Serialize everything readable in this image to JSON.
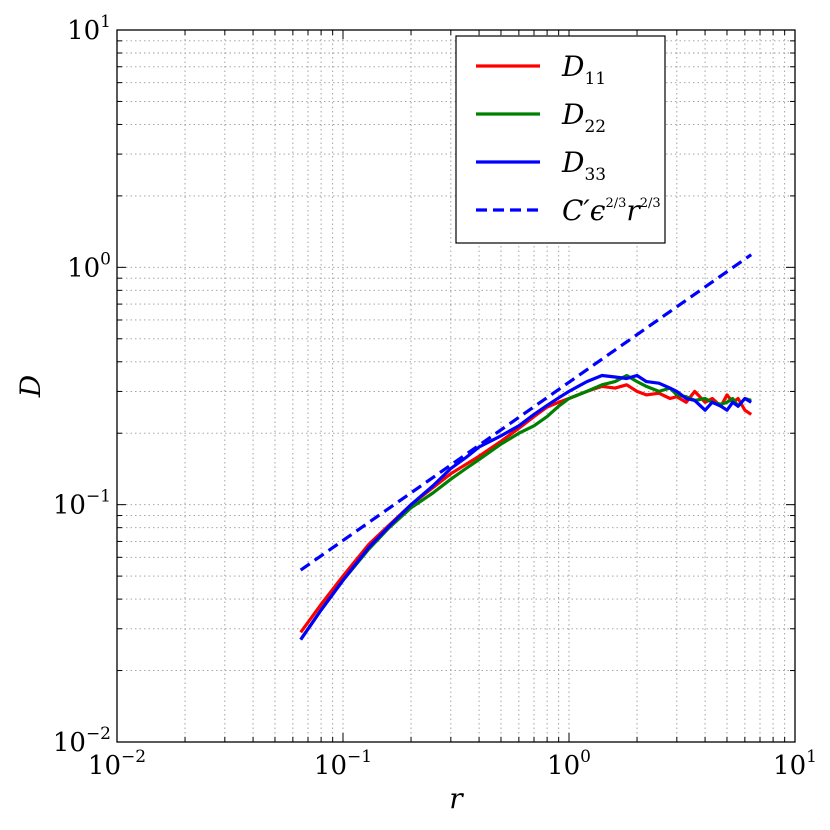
{
  "chart_data": {
    "type": "line",
    "xscale": "log",
    "yscale": "log",
    "xlim": [
      0.01,
      10
    ],
    "ylim": [
      0.01,
      10
    ],
    "xlabel": "r",
    "ylabel": "D",
    "grid": true,
    "legend_position": "top-right",
    "x_ticks": [
      {
        "value": 0.01,
        "base": "10",
        "exp": "−2"
      },
      {
        "value": 0.1,
        "base": "10",
        "exp": "−1"
      },
      {
        "value": 1,
        "base": "10",
        "exp": "0"
      },
      {
        "value": 10,
        "base": "10",
        "exp": "1"
      }
    ],
    "y_ticks": [
      {
        "value": 0.01,
        "base": "10",
        "exp": "−2"
      },
      {
        "value": 0.1,
        "base": "10",
        "exp": "−1"
      },
      {
        "value": 1,
        "base": "10",
        "exp": "0"
      },
      {
        "value": 10,
        "base": "10",
        "exp": "1"
      }
    ],
    "series": [
      {
        "name": "D11",
        "label_main": "D",
        "label_sub": "11",
        "color": "#ff0000",
        "style": "solid",
        "x": [
          0.065,
          0.08,
          0.1,
          0.13,
          0.16,
          0.2,
          0.25,
          0.3,
          0.35,
          0.4,
          0.5,
          0.6,
          0.7,
          0.8,
          0.9,
          1.0,
          1.2,
          1.4,
          1.6,
          1.8,
          2.0,
          2.2,
          2.5,
          2.8,
          3.0,
          3.3,
          3.6,
          4.0,
          4.3,
          4.7,
          5.0,
          5.3,
          5.6,
          6.0,
          6.4
        ],
        "y": [
          0.029,
          0.038,
          0.05,
          0.068,
          0.082,
          0.1,
          0.118,
          0.135,
          0.148,
          0.16,
          0.185,
          0.21,
          0.235,
          0.258,
          0.27,
          0.28,
          0.3,
          0.315,
          0.31,
          0.32,
          0.3,
          0.29,
          0.295,
          0.28,
          0.285,
          0.27,
          0.3,
          0.27,
          0.28,
          0.26,
          0.29,
          0.27,
          0.28,
          0.25,
          0.24
        ]
      },
      {
        "name": "D22",
        "label_main": "D",
        "label_sub": "22",
        "color": "#008000",
        "style": "solid",
        "x": [
          0.065,
          0.08,
          0.1,
          0.13,
          0.16,
          0.2,
          0.25,
          0.3,
          0.35,
          0.4,
          0.5,
          0.6,
          0.7,
          0.8,
          0.9,
          1.0,
          1.2,
          1.4,
          1.6,
          1.8,
          2.0,
          2.2,
          2.5,
          2.8,
          3.0,
          3.3,
          3.6,
          4.0,
          4.3,
          4.7,
          5.0,
          5.3,
          5.6,
          6.0,
          6.4
        ],
        "y": [
          0.027,
          0.036,
          0.048,
          0.065,
          0.08,
          0.097,
          0.112,
          0.128,
          0.142,
          0.155,
          0.18,
          0.2,
          0.215,
          0.235,
          0.26,
          0.28,
          0.3,
          0.32,
          0.33,
          0.35,
          0.33,
          0.315,
          0.3,
          0.31,
          0.29,
          0.285,
          0.275,
          0.28,
          0.27,
          0.265,
          0.27,
          0.28,
          0.26,
          0.28,
          0.275
        ]
      },
      {
        "name": "D33",
        "label_main": "D",
        "label_sub": "33",
        "color": "#0000ff",
        "style": "solid",
        "x": [
          0.065,
          0.08,
          0.1,
          0.13,
          0.16,
          0.2,
          0.25,
          0.3,
          0.35,
          0.4,
          0.5,
          0.6,
          0.7,
          0.8,
          0.9,
          1.0,
          1.2,
          1.4,
          1.6,
          1.8,
          2.0,
          2.2,
          2.5,
          2.8,
          3.0,
          3.3,
          3.6,
          4.0,
          4.3,
          4.7,
          5.0,
          5.3,
          5.6,
          6.0,
          6.4
        ],
        "y": [
          0.027,
          0.036,
          0.048,
          0.066,
          0.081,
          0.1,
          0.12,
          0.142,
          0.158,
          0.175,
          0.195,
          0.215,
          0.24,
          0.262,
          0.282,
          0.3,
          0.33,
          0.35,
          0.345,
          0.34,
          0.35,
          0.33,
          0.325,
          0.31,
          0.3,
          0.28,
          0.275,
          0.25,
          0.27,
          0.26,
          0.25,
          0.27,
          0.26,
          0.28,
          0.27
        ]
      },
      {
        "name": "C' ε^(2/3) r^(2/3)",
        "label_main": "C′ϵ",
        "label_sub": "",
        "label_sup1": "2/3",
        "label_mid": "r",
        "label_sup2": "2/3",
        "color": "#0000ff",
        "style": "dashed",
        "x": [
          0.065,
          6.4
        ],
        "y": [
          0.053,
          1.13
        ]
      }
    ]
  }
}
